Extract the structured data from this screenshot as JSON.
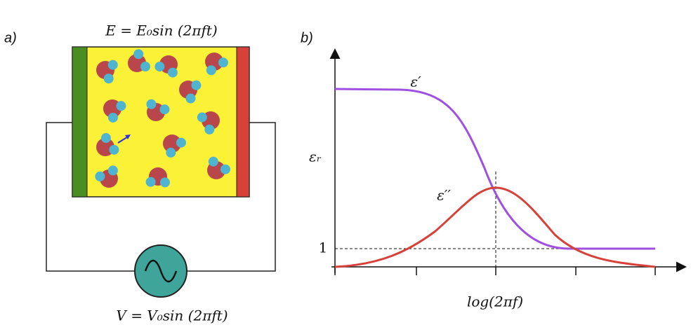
{
  "panel_a": {
    "label": "a)",
    "field_equation": "E = E₀sin (2πft)",
    "voltage_equation": "V = V₀sin (2πft)"
  },
  "panel_b": {
    "label": "b)",
    "y_axis_label": "εᵣ",
    "x_axis_label": "log(2πf)",
    "real_part_label": "ε′",
    "imaginary_part_label": "ε′′",
    "baseline_label": "1"
  }
}
